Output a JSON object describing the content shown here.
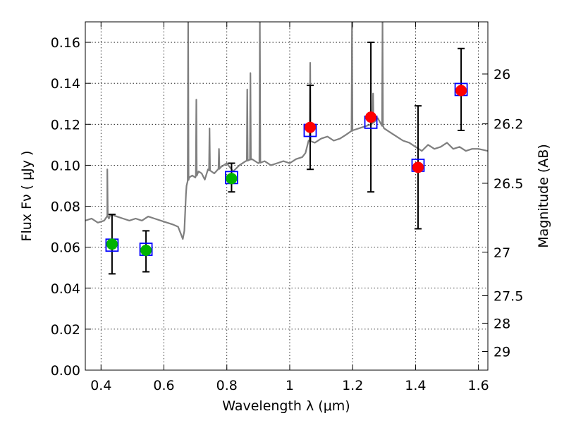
{
  "chart_data": {
    "type": "scatter",
    "title": "",
    "xlabel": "Wavelength  λ (μm)",
    "ylabel": "Flux  Fν  ( μJy )",
    "y2label": "Magnitude (AB)",
    "xlim": [
      0.35,
      1.63
    ],
    "ylim": [
      0.0,
      0.17
    ],
    "grid": true,
    "xticks": [
      "0.4",
      "0.6",
      "0.8",
      "1",
      "1.2",
      "1.4",
      "1.6"
    ],
    "xtick_values": [
      0.4,
      0.6,
      0.8,
      1.0,
      1.2,
      1.4,
      1.6
    ],
    "yticks": [
      "0.00",
      "0.02",
      "0.04",
      "0.06",
      "0.08",
      "0.10",
      "0.12",
      "0.14",
      "0.16"
    ],
    "ytick_values": [
      0.0,
      0.02,
      0.04,
      0.06,
      0.08,
      0.1,
      0.12,
      0.14,
      0.16
    ],
    "y2ticks": [
      {
        "label": "26",
        "mag": 26.0
      },
      {
        "label": "26.2",
        "mag": 26.2
      },
      {
        "label": "26.5",
        "mag": 26.5
      },
      {
        "label": "27",
        "mag": 27.0
      },
      {
        "label": "27.5",
        "mag": 27.5
      },
      {
        "label": "28",
        "mag": 28.0
      },
      {
        "label": "29",
        "mag": 29.0
      }
    ],
    "colors": {
      "model": "#7f7f7f",
      "green": "#00b300",
      "red": "#ff0000",
      "model_box": "#0000ff",
      "errorbar": "#000000"
    },
    "series": [
      {
        "kind": "model_spectrum",
        "x": [
          0.35,
          0.37,
          0.39,
          0.41,
          0.42,
          0.425,
          0.43,
          0.45,
          0.47,
          0.49,
          0.51,
          0.53,
          0.55,
          0.57,
          0.59,
          0.61,
          0.63,
          0.645,
          0.655,
          0.66,
          0.665,
          0.67,
          0.672,
          0.675,
          0.68,
          0.69,
          0.7,
          0.71,
          0.72,
          0.73,
          0.74,
          0.76,
          0.78,
          0.8,
          0.82,
          0.84,
          0.86,
          0.88,
          0.9,
          0.92,
          0.94,
          0.96,
          0.98,
          1.0,
          1.02,
          1.04,
          1.05,
          1.06,
          1.08,
          1.1,
          1.12,
          1.14,
          1.16,
          1.18,
          1.2,
          1.22,
          1.24,
          1.26,
          1.28,
          1.3,
          1.32,
          1.34,
          1.36,
          1.38,
          1.4,
          1.42,
          1.44,
          1.46,
          1.48,
          1.5,
          1.52,
          1.54,
          1.56,
          1.58,
          1.6,
          1.63
        ],
        "y": [
          0.073,
          0.074,
          0.072,
          0.073,
          0.075,
          0.074,
          0.076,
          0.075,
          0.074,
          0.073,
          0.074,
          0.073,
          0.075,
          0.074,
          0.073,
          0.072,
          0.071,
          0.07,
          0.066,
          0.064,
          0.068,
          0.086,
          0.09,
          0.092,
          0.094,
          0.095,
          0.094,
          0.097,
          0.096,
          0.093,
          0.098,
          0.096,
          0.099,
          0.101,
          0.097,
          0.1,
          0.102,
          0.103,
          0.101,
          0.102,
          0.1,
          0.101,
          0.102,
          0.101,
          0.103,
          0.104,
          0.106,
          0.112,
          0.111,
          0.113,
          0.114,
          0.112,
          0.113,
          0.115,
          0.117,
          0.118,
          0.119,
          0.12,
          0.123,
          0.118,
          0.116,
          0.114,
          0.112,
          0.111,
          0.109,
          0.107,
          0.11,
          0.108,
          0.109,
          0.111,
          0.108,
          0.109,
          0.107,
          0.108,
          0.108,
          0.107
        ],
        "spikes": [
          {
            "x": 0.42,
            "y": 0.098
          },
          {
            "x": 0.677,
            "y": 0.17
          },
          {
            "x": 0.703,
            "y": 0.132
          },
          {
            "x": 0.745,
            "y": 0.118
          },
          {
            "x": 0.775,
            "y": 0.108
          },
          {
            "x": 0.865,
            "y": 0.137
          },
          {
            "x": 0.875,
            "y": 0.145
          },
          {
            "x": 0.905,
            "y": 0.17
          },
          {
            "x": 1.065,
            "y": 0.15
          },
          {
            "x": 1.198,
            "y": 0.17
          },
          {
            "x": 1.265,
            "y": 0.135
          },
          {
            "x": 1.295,
            "y": 0.17
          }
        ]
      },
      {
        "kind": "observed",
        "x": [
          0.435,
          0.543,
          0.815,
          1.065,
          1.258,
          1.408,
          1.545
        ],
        "y": [
          0.0615,
          0.0585,
          0.0935,
          0.1185,
          0.1235,
          0.099,
          0.1365
        ],
        "yerr_low": [
          0.047,
          0.048,
          0.087,
          0.098,
          0.087,
          0.069,
          0.117
        ],
        "yerr_high": [
          0.076,
          0.068,
          0.101,
          0.139,
          0.16,
          0.129,
          0.157
        ],
        "color": [
          "green",
          "green",
          "green",
          "red",
          "red",
          "red",
          "red"
        ]
      },
      {
        "kind": "model_photometry",
        "x": [
          0.435,
          0.543,
          0.815,
          1.065,
          1.258,
          1.408,
          1.545
        ],
        "y": [
          0.061,
          0.059,
          0.094,
          0.117,
          0.121,
          0.1,
          0.137
        ]
      }
    ]
  }
}
